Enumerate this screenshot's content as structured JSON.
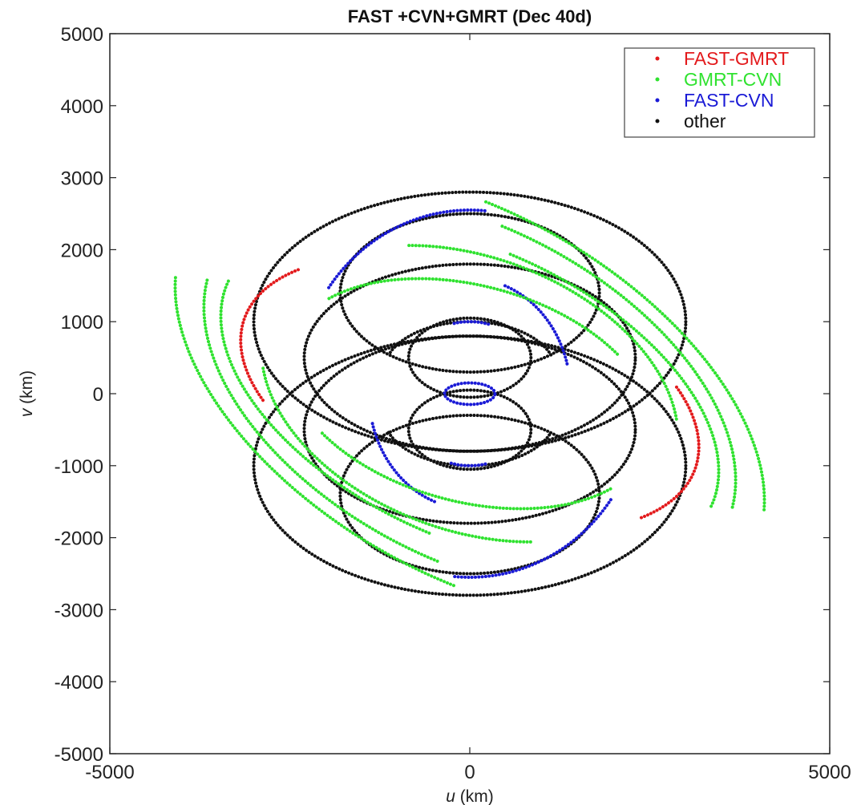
{
  "chart_data": {
    "type": "scatter",
    "title": "FAST +CVN+GMRT (Dec 40d)",
    "xlabel_var": "u",
    "xlabel_unit": "(km)",
    "ylabel_var": "v",
    "ylabel_unit": "(km)",
    "xlim": [
      -5000,
      5000
    ],
    "ylim": [
      -5000,
      5000
    ],
    "xticks": [
      "-5000",
      "0",
      "5000"
    ],
    "yticks": [
      "-5000",
      "-4000",
      "-3000",
      "-2000",
      "-1000",
      "0",
      "1000",
      "2000",
      "3000",
      "4000",
      "5000"
    ],
    "grid": false,
    "legend_position": "top-right",
    "legend": [
      {
        "name": "FAST-GMRT",
        "color": "#e31a1c"
      },
      {
        "name": "GMRT-CVN",
        "color": "#2fe22f"
      },
      {
        "name": "FAST-CVN",
        "color": "#1a1ad6"
      },
      {
        "name": "other",
        "color": "#111111"
      }
    ],
    "series": [
      {
        "name": "FAST-GMRT",
        "color": "#e31a1c",
        "tracks": [
          {
            "cx": 0,
            "cy": 0,
            "a": 3300,
            "b": 1700,
            "rot": -18,
            "from": 148,
            "to": 215
          },
          {
            "cx": 0,
            "cy": 0,
            "a": 3300,
            "b": 1700,
            "rot": -18,
            "from": 328,
            "to": 395
          }
        ]
      },
      {
        "name": "GMRT-CVN",
        "color": "#2fe22f",
        "tracks": [
          {
            "cx": 0,
            "cy": 0,
            "a": 4500,
            "b": 2500,
            "rot": -30,
            "from": 15,
            "to": 105
          },
          {
            "cx": 0,
            "cy": 0,
            "a": 4500,
            "b": 2500,
            "rot": -30,
            "from": 195,
            "to": 285
          },
          {
            "cx": 0,
            "cy": 0,
            "a": 4000,
            "b": 2300,
            "rot": -28,
            "from": 8,
            "to": 100
          },
          {
            "cx": 0,
            "cy": 0,
            "a": 4000,
            "b": 2300,
            "rot": -28,
            "from": 188,
            "to": 280
          },
          {
            "cx": 0,
            "cy": 0,
            "a": 3700,
            "b": 2000,
            "rot": -25,
            "from": 0,
            "to": 95
          },
          {
            "cx": 0,
            "cy": 0,
            "a": 3700,
            "b": 2000,
            "rot": -25,
            "from": 180,
            "to": 275
          },
          {
            "cx": 0,
            "cy": 0,
            "a": 3000,
            "b": 1900,
            "rot": -20,
            "from": 20,
            "to": 120
          },
          {
            "cx": 0,
            "cy": 0,
            "a": 3000,
            "b": 1900,
            "rot": -20,
            "from": 200,
            "to": 300
          },
          {
            "cx": 0,
            "cy": 0,
            "a": 2600,
            "b": 1500,
            "rot": -15,
            "from": 45,
            "to": 150
          },
          {
            "cx": 0,
            "cy": 0,
            "a": 2600,
            "b": 1500,
            "rot": -15,
            "from": 225,
            "to": 330
          }
        ]
      },
      {
        "name": "FAST-CVN",
        "color": "#1a1ad6",
        "tracks": [
          {
            "cx": 0,
            "cy": 0,
            "a": 2400,
            "b": 2550,
            "rot": 0,
            "from": 85,
            "to": 145
          },
          {
            "cx": 0,
            "cy": 0,
            "a": 2400,
            "b": 2550,
            "rot": 0,
            "from": 265,
            "to": 325
          },
          {
            "cx": 0,
            "cy": 0,
            "a": 1400,
            "b": 1600,
            "rot": 0,
            "from": 15,
            "to": 70
          },
          {
            "cx": 0,
            "cy": 0,
            "a": 1400,
            "b": 1600,
            "rot": 0,
            "from": 195,
            "to": 250
          },
          {
            "cx": 0,
            "cy": 0,
            "a": 1000,
            "b": 1000,
            "rot": 0,
            "from": 75,
            "to": 105
          },
          {
            "cx": 0,
            "cy": 0,
            "a": 1000,
            "b": 1000,
            "rot": 0,
            "from": 255,
            "to": 285
          },
          {
            "cx": 0,
            "cy": 0,
            "a": 350,
            "b": 150,
            "rot": 0,
            "from": 0,
            "to": 360
          }
        ]
      },
      {
        "name": "other",
        "color": "#111111",
        "tracks": [
          {
            "cx": 0,
            "cy": 1000,
            "a": 3000,
            "b": 1800,
            "rot": 0,
            "from": 0,
            "to": 360
          },
          {
            "cx": 0,
            "cy": -1000,
            "a": 3000,
            "b": 1800,
            "rot": 0,
            "from": 0,
            "to": 360
          },
          {
            "cx": 0,
            "cy": 500,
            "a": 2300,
            "b": 1300,
            "rot": 0,
            "from": 0,
            "to": 360
          },
          {
            "cx": 0,
            "cy": -500,
            "a": 2300,
            "b": 1300,
            "rot": 0,
            "from": 0,
            "to": 360
          },
          {
            "cx": 0,
            "cy": 1400,
            "a": 1800,
            "b": 1100,
            "rot": 0,
            "from": 0,
            "to": 360
          },
          {
            "cx": 0,
            "cy": -1400,
            "a": 1800,
            "b": 1100,
            "rot": 0,
            "from": 0,
            "to": 360
          },
          {
            "cx": 0,
            "cy": 500,
            "a": 850,
            "b": 550,
            "rot": 0,
            "from": 0,
            "to": 360
          },
          {
            "cx": 0,
            "cy": -500,
            "a": 850,
            "b": 550,
            "rot": 0,
            "from": 0,
            "to": 360
          },
          {
            "cx": 0,
            "cy": 300,
            "a": 1200,
            "b": 700,
            "rot": 0,
            "from": 20,
            "to": 160
          },
          {
            "cx": 0,
            "cy": -300,
            "a": 1200,
            "b": 700,
            "rot": 0,
            "from": 200,
            "to": 340
          }
        ]
      }
    ]
  }
}
